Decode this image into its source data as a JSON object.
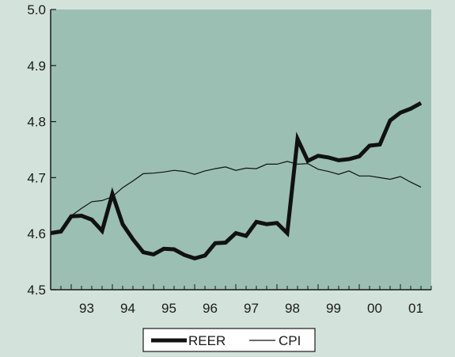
{
  "colors": {
    "page_background": "#d3e3dc",
    "plot_background": "#9bbfb3",
    "axis": "#1a1a1a",
    "reer_line": "#111111",
    "cpi_line": "#111111"
  },
  "chart_data": {
    "type": "line",
    "title": "",
    "xlabel": "",
    "ylabel": "",
    "x_tick_labels": [
      "93",
      "94",
      "95",
      "96",
      "97",
      "98",
      "99",
      "00",
      "01"
    ],
    "x_tick_positions": [
      1993,
      1994,
      1995,
      1996,
      1997,
      1998,
      1999,
      2000,
      2001
    ],
    "xlim": [
      1992.5,
      2001.75
    ],
    "y_tick_labels": [
      "4.5",
      "4.6",
      "4.7",
      "4.8",
      "4.9",
      "5.0"
    ],
    "y_ticks": [
      4.5,
      4.6,
      4.7,
      4.8,
      4.9,
      5.0
    ],
    "ylim": [
      4.5,
      5.0
    ],
    "grid": false,
    "legend_position": "bottom-center",
    "x": [
      1992.5,
      1992.75,
      1993.0,
      1993.25,
      1993.5,
      1993.75,
      1994.0,
      1994.25,
      1994.5,
      1994.75,
      1995.0,
      1995.25,
      1995.5,
      1995.75,
      1996.0,
      1996.25,
      1996.5,
      1996.75,
      1997.0,
      1997.25,
      1997.5,
      1997.75,
      1998.0,
      1998.25,
      1998.5,
      1998.75,
      1999.0,
      1999.25,
      1999.5,
      1999.75,
      2000.0,
      2000.25,
      2000.5,
      2000.75,
      2001.0,
      2001.25,
      2001.5
    ],
    "series": [
      {
        "name": "REER",
        "values": [
          4.601,
          4.604,
          4.631,
          4.632,
          4.625,
          4.605,
          4.671,
          4.617,
          4.59,
          4.567,
          4.563,
          4.573,
          4.572,
          4.562,
          4.556,
          4.561,
          4.583,
          4.584,
          4.601,
          4.596,
          4.621,
          4.617,
          4.619,
          4.601,
          4.769,
          4.73,
          4.739,
          4.736,
          4.731,
          4.733,
          4.738,
          4.757,
          4.759,
          4.802,
          4.816,
          4.823,
          4.833
        ]
      },
      {
        "name": "CPI",
        "values": [
          4.601,
          4.606,
          4.632,
          4.645,
          4.657,
          4.659,
          4.666,
          4.682,
          4.694,
          4.707,
          4.708,
          4.71,
          4.713,
          4.711,
          4.706,
          4.712,
          4.716,
          4.719,
          4.713,
          4.717,
          4.716,
          4.724,
          4.724,
          4.729,
          4.724,
          4.725,
          4.715,
          4.711,
          4.706,
          4.712,
          4.703,
          4.703,
          4.7,
          4.697,
          4.702,
          4.692,
          4.683
        ]
      }
    ]
  }
}
